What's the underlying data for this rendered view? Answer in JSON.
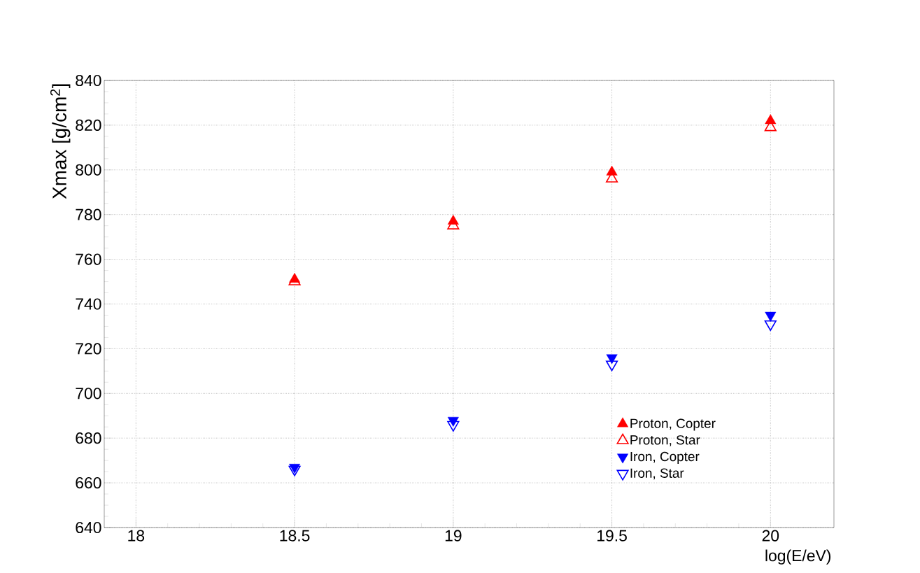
{
  "chart_data": {
    "type": "scatter",
    "xlabel": "log(E/eV)",
    "ylabel": "Xmax [g/cm$^{2}$]",
    "x": [
      18.5,
      19,
      19.5,
      20
    ],
    "series": [
      {
        "name": "Proton, Copter",
        "color": "#ff0000",
        "marker": "triangle",
        "values": [
          751,
          777,
          799,
          822
        ]
      },
      {
        "name": "Proton, Star",
        "color": "#ff0000",
        "marker": "triangle-open",
        "values": [
          750,
          775,
          796,
          819
        ]
      },
      {
        "name": "Iron, Copter",
        "color": "#0000ff",
        "marker": "triangle-down",
        "values": [
          667,
          688,
          716,
          735
        ]
      },
      {
        "name": "Iron, Star",
        "color": "#0000ff",
        "marker": "triangle-down-open",
        "values": [
          666,
          686,
          713,
          731
        ]
      }
    ],
    "xlim": [
      17.9,
      20.2
    ],
    "xticks": [
      18,
      18.5,
      19,
      19.5,
      20
    ],
    "ylim": [
      640,
      840
    ],
    "yticks": [
      640,
      660,
      680,
      700,
      720,
      740,
      760,
      780,
      800,
      820,
      840
    ],
    "grid": true,
    "legend": "bottom right"
  }
}
